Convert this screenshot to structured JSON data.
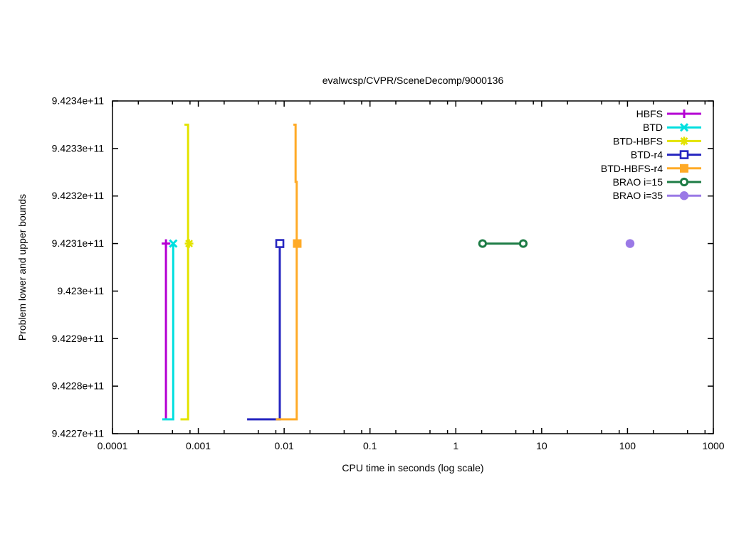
{
  "chart_data": {
    "type": "line",
    "title": "evalwcsp/CVPR/SceneDecomp/9000136",
    "xlabel": "CPU time in seconds (log scale)",
    "ylabel": "Problem lower and upper bounds",
    "x_scale": "log",
    "grid": false,
    "legend_position": "top-right",
    "xlim": [
      0.0001,
      1000
    ],
    "ylim": [
      942270000000.0,
      942340000000.0
    ],
    "x_ticks": [
      {
        "value": 0.0001,
        "label": "0.0001"
      },
      {
        "value": 0.001,
        "label": "0.001"
      },
      {
        "value": 0.01,
        "label": "0.01"
      },
      {
        "value": 0.1,
        "label": "0.1"
      },
      {
        "value": 1,
        "label": "1"
      },
      {
        "value": 10,
        "label": "10"
      },
      {
        "value": 100,
        "label": "100"
      },
      {
        "value": 1000,
        "label": "1000"
      }
    ],
    "x_minor_multiples": [
      2,
      5,
      8
    ],
    "y_ticks": [
      {
        "value": 942270000000.0,
        "label": "9.4227e+11"
      },
      {
        "value": 942280000000.0,
        "label": "9.4228e+11"
      },
      {
        "value": 942290000000.0,
        "label": "9.4229e+11"
      },
      {
        "value": 942300000000.0,
        "label": "9.423e+11"
      },
      {
        "value": 942310000000.0,
        "label": "9.4231e+11"
      },
      {
        "value": 942320000000.0,
        "label": "9.4232e+11"
      },
      {
        "value": 942330000000.0,
        "label": "9.4233e+11"
      },
      {
        "value": 942340000000.0,
        "label": "9.4234e+11"
      }
    ],
    "series": [
      {
        "name": "HBFS",
        "color": "#b400d3",
        "marker": "plus",
        "line": [
          [
            0.00042,
            942273000000.0
          ],
          [
            0.00042,
            942310000000.0
          ]
        ],
        "points": [
          [
            0.00042,
            942310000000.0
          ]
        ]
      },
      {
        "name": "BTD",
        "color": "#00dfdf",
        "marker": "cross",
        "line": [
          [
            0.00038,
            942273000000.0
          ],
          [
            0.00051,
            942273000000.0
          ],
          [
            0.00051,
            942310000000.0
          ]
        ],
        "points": [
          [
            0.00051,
            942310000000.0
          ]
        ]
      },
      {
        "name": "BTD-HBFS",
        "color": "#e3e300",
        "marker": "star",
        "line": [
          [
            0.00062,
            942273000000.0
          ],
          [
            0.00076,
            942273000000.0
          ],
          [
            0.00076,
            942335000000.0
          ],
          [
            0.00069,
            942335000000.0
          ]
        ],
        "points": [
          [
            0.00078,
            942310000000.0
          ]
        ]
      },
      {
        "name": "BTD-r4",
        "color": "#2626c0",
        "marker": "square-open",
        "line": [
          [
            0.0037,
            942273000000.0
          ],
          [
            0.0089,
            942273000000.0
          ],
          [
            0.0089,
            942310000000.0
          ]
        ],
        "points": [
          [
            0.0089,
            942310000000.0
          ]
        ]
      },
      {
        "name": "BTD-HBFS-r4",
        "color": "#ffaa26",
        "marker": "square-filled",
        "line": [
          [
            0.008,
            942273000000.0
          ],
          [
            0.014,
            942273000000.0
          ],
          [
            0.014,
            942323000000.0
          ],
          [
            0.0136,
            942323000000.0
          ],
          [
            0.0136,
            942335000000.0
          ],
          [
            0.0128,
            942335000000.0
          ]
        ],
        "points": [
          [
            0.0142,
            942310000000.0
          ]
        ]
      },
      {
        "name": "BRAO i=15",
        "color": "#1d7c45",
        "marker": "circle-open",
        "line": [
          [
            2.05,
            942310000000.0
          ],
          [
            6.1,
            942310000000.0
          ]
        ],
        "points": [
          [
            2.05,
            942310000000.0
          ],
          [
            6.1,
            942310000000.0
          ]
        ]
      },
      {
        "name": "BRAO i=35",
        "color": "#9a79e6",
        "marker": "circle-filled",
        "line": [],
        "points": [
          [
            107,
            942310000000.0
          ]
        ]
      }
    ]
  }
}
